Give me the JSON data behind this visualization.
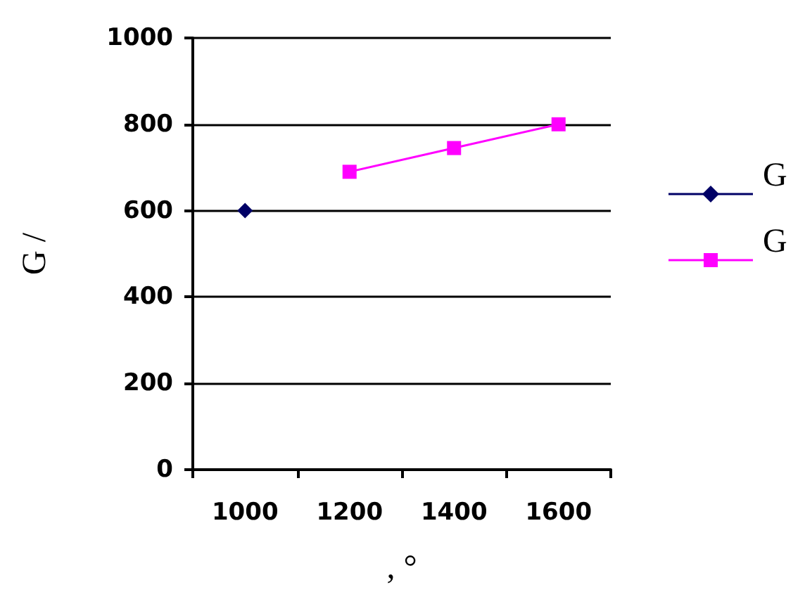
{
  "chart_data": {
    "type": "line",
    "xlabel": ", °",
    "ylabel": "G /",
    "categories": [
      "1000",
      "1200",
      "1400",
      "1600"
    ],
    "series": [
      {
        "name": "G",
        "color": "#000066",
        "marker": "diamond",
        "values": [
          600,
          null,
          null,
          null
        ]
      },
      {
        "name": "G",
        "color": "#ff00ff",
        "marker": "square",
        "values": [
          null,
          690,
          745,
          800
        ]
      }
    ],
    "ylim": [
      0,
      1000
    ],
    "yticks": [
      0,
      200,
      400,
      600,
      800,
      1000
    ],
    "grid": "y",
    "legend": "right"
  }
}
